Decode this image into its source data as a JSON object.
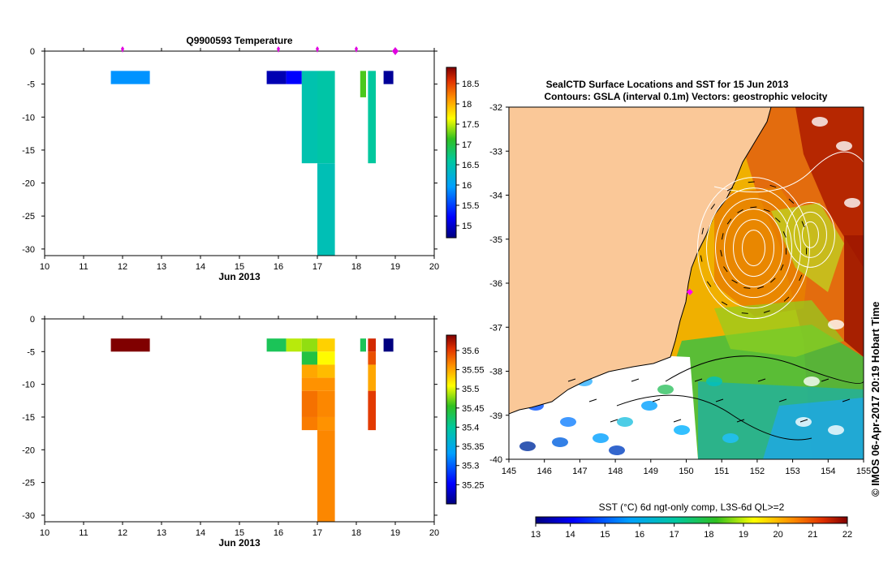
{
  "chart_data": [
    {
      "type": "heatmap",
      "title": "Q9900593  Temperature",
      "xlabel": "Jun 2013",
      "xlim": [
        10,
        20
      ],
      "ylim": [
        -31,
        0
      ],
      "xticks": [
        "10",
        "11",
        "12",
        "13",
        "14",
        "15",
        "16",
        "17",
        "18",
        "19",
        "20"
      ],
      "yticks": [
        "0",
        "-5",
        "-10",
        "-15",
        "-20",
        "-25",
        "-30"
      ],
      "profile_markers_x": [
        12,
        16,
        17,
        18,
        19
      ],
      "colorbar": {
        "min": 14.7,
        "max": 18.9,
        "ticks": [
          "15",
          "15.5",
          "16",
          "16.5",
          "17",
          "17.5",
          "18",
          "18.5"
        ],
        "tick_values": [
          15,
          15.5,
          16,
          16.5,
          17,
          17.5,
          18,
          18.5
        ],
        "palette": "jet"
      },
      "cells": [
        {
          "x0": 11.7,
          "x1": 12.7,
          "y0": -3,
          "y1": -5,
          "v": 15.9
        },
        {
          "x0": 15.7,
          "x1": 16.2,
          "y0": -3,
          "y1": -5,
          "v": 14.9
        },
        {
          "x0": 16.2,
          "x1": 16.6,
          "y0": -3,
          "y1": -5,
          "v": 15.2
        },
        {
          "x0": 16.6,
          "x1": 17.0,
          "y0": -3,
          "y1": -17,
          "v": 16.5
        },
        {
          "x0": 17.0,
          "x1": 17.45,
          "y0": -3,
          "y1": -17,
          "v": 16.55
        },
        {
          "x0": 17.0,
          "x1": 17.45,
          "y0": -17,
          "y1": -31,
          "v": 16.45
        },
        {
          "x0": 18.1,
          "x1": 18.25,
          "y0": -3,
          "y1": -7,
          "v": 17.2
        },
        {
          "x0": 18.3,
          "x1": 18.5,
          "y0": -3,
          "y1": -17,
          "v": 16.6
        },
        {
          "x0": 18.7,
          "x1": 18.95,
          "y0": -3,
          "y1": -5,
          "v": 14.8
        }
      ]
    },
    {
      "type": "heatmap",
      "title": "",
      "xlabel": "Jun 2013",
      "xlim": [
        10,
        20
      ],
      "ylim": [
        -31,
        0
      ],
      "xticks": [
        "10",
        "11",
        "12",
        "13",
        "14",
        "15",
        "16",
        "17",
        "18",
        "19",
        "20"
      ],
      "yticks": [
        "0",
        "-5",
        "-10",
        "-15",
        "-20",
        "-25",
        "-30"
      ],
      "colorbar": {
        "min": 35.2,
        "max": 35.64,
        "ticks": [
          "35.25",
          "35.3",
          "35.35",
          "35.4",
          "35.45",
          "35.5",
          "35.55",
          "35.6"
        ],
        "tick_values": [
          35.25,
          35.3,
          35.35,
          35.4,
          35.45,
          35.5,
          35.55,
          35.6
        ],
        "palette": "jet"
      },
      "cells": [
        {
          "x0": 11.7,
          "x1": 12.7,
          "y0": -3,
          "y1": -5,
          "v": 35.64
        },
        {
          "x0": 15.7,
          "x1": 16.2,
          "y0": -3,
          "y1": -5,
          "v": 35.43
        },
        {
          "x0": 16.2,
          "x1": 16.6,
          "y0": -3,
          "y1": -5,
          "v": 35.49
        },
        {
          "x0": 16.6,
          "x1": 17.0,
          "y0": -3,
          "y1": -5,
          "v": 35.48
        },
        {
          "x0": 17.0,
          "x1": 17.45,
          "y0": -3,
          "y1": -5,
          "v": 35.53
        },
        {
          "x0": 16.6,
          "x1": 17.0,
          "y0": -5,
          "y1": -7,
          "v": 35.44
        },
        {
          "x0": 17.0,
          "x1": 17.45,
          "y0": -5,
          "y1": -7,
          "v": 35.51
        },
        {
          "x0": 16.6,
          "x1": 17.0,
          "y0": -7,
          "y1": -9,
          "v": 35.55
        },
        {
          "x0": 17.0,
          "x1": 17.45,
          "y0": -7,
          "y1": -9,
          "v": 35.54
        },
        {
          "x0": 16.6,
          "x1": 17.0,
          "y0": -9,
          "y1": -11,
          "v": 35.56
        },
        {
          "x0": 17.0,
          "x1": 17.45,
          "y0": -9,
          "y1": -11,
          "v": 35.56
        },
        {
          "x0": 16.6,
          "x1": 17.0,
          "y0": -11,
          "y1": -15,
          "v": 35.575
        },
        {
          "x0": 17.0,
          "x1": 17.45,
          "y0": -11,
          "y1": -15,
          "v": 35.565
        },
        {
          "x0": 16.6,
          "x1": 17.0,
          "y0": -15,
          "y1": -17,
          "v": 35.57
        },
        {
          "x0": 17.0,
          "x1": 17.45,
          "y0": -15,
          "y1": -17,
          "v": 35.56
        },
        {
          "x0": 17.0,
          "x1": 17.45,
          "y0": -17,
          "y1": -31,
          "v": 35.565
        },
        {
          "x0": 18.1,
          "x1": 18.25,
          "y0": -3,
          "y1": -5,
          "v": 35.43
        },
        {
          "x0": 18.3,
          "x1": 18.5,
          "y0": -3,
          "y1": -5,
          "v": 35.61
        },
        {
          "x0": 18.3,
          "x1": 18.5,
          "y0": -5,
          "y1": -7,
          "v": 35.59
        },
        {
          "x0": 18.3,
          "x1": 18.5,
          "y0": -7,
          "y1": -11,
          "v": 35.55
        },
        {
          "x0": 18.3,
          "x1": 18.5,
          "y0": -11,
          "y1": -17,
          "v": 35.6
        },
        {
          "x0": 18.7,
          "x1": 18.95,
          "y0": -3,
          "y1": -5,
          "v": 35.2
        }
      ]
    },
    {
      "type": "heatmap",
      "title": "SealCTD Surface Locations and SST for 15 Jun 2013",
      "subtitle": "Contours: GSLA (interval 0.1m) Vectors: geostrophic velocity",
      "xlim": [
        145,
        155
      ],
      "ylim": [
        -40,
        -32
      ],
      "xticks": [
        "145",
        "146",
        "147",
        "148",
        "149",
        "150",
        "151",
        "152",
        "153",
        "154",
        "155"
      ],
      "yticks": [
        "-32",
        "-33",
        "-34",
        "-35",
        "-36",
        "-37",
        "-38",
        "-39",
        "-40"
      ],
      "colorbar": {
        "label": "SST (°C) 6d ngt-only comp, L3S-6d QL>=2",
        "min": 13,
        "max": 22,
        "ticks": [
          "13",
          "14",
          "15",
          "16",
          "17",
          "18",
          "19",
          "20",
          "21",
          "22"
        ],
        "palette": "jet"
      },
      "seal_location": {
        "lon": 150.1,
        "lat": -36.2
      },
      "credit": "© IMOS 06-Apr-2017 20:19 Hobart Time"
    }
  ]
}
